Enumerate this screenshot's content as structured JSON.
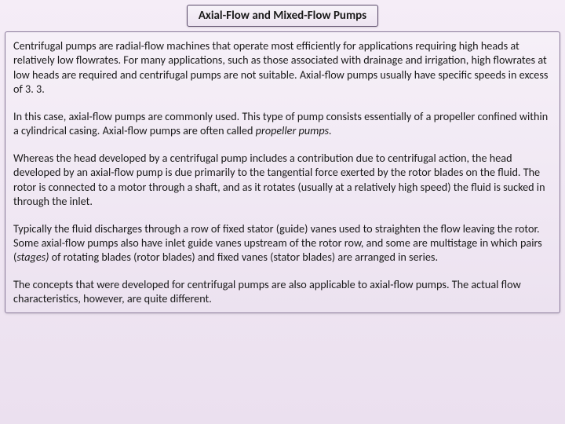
{
  "title": "Axial-Flow and Mixed-Flow Pumps",
  "paragraphs": {
    "p1": "Centrifugal pumps are radial-flow machines that operate most efficiently for applications requiring high heads at relatively low flowrates. For many applications, such as those associated with drainage and irrigation, high flowrates at low heads are required and centrifugal pumps are not suitable. Axial-flow pumps usually have specific speeds in excess of 3. 3.",
    "p2a": "In this case, axial-flow pumps are commonly used. This type of pump consists essentially of a propeller confined within a cylindrical casing. Axial-flow pumps are often called ",
    "p2b": "propeller pumps.",
    "p3": "Whereas the head developed by a centrifugal pump includes a contribution due to centrifugal action, the head developed by an axial-flow pump is due primarily to the tangential force exerted by the rotor blades on the fluid. The rotor is connected to a motor through a shaft, and as it rotates (usually at a relatively high speed) the fluid is sucked in through the inlet.",
    "p4a": "Typically the fluid discharges through a row of fixed stator (guide) vanes used to straighten the flow leaving the rotor.  Some axial-flow pumps also have inlet guide vanes upstream of the rotor row, and some are multistage in which pairs (",
    "p4b": "stages)",
    "p4c": " of rotating blades (rotor blades) and fixed vanes (stator blades) are arranged in series.",
    "p5": "The concepts that were developed for centrifugal pumps are also applicable to axial-flow pumps. The actual flow characteristics, however, are quite different."
  },
  "colors": {
    "bg_top": "#f5edf7",
    "bg_bottom": "#ebe0ef",
    "box_border": "#5a4a6a",
    "text": "#1a1a1a"
  },
  "typography": {
    "title_fontsize": 15,
    "title_weight": "bold",
    "body_fontsize": 14.2,
    "font_family": "Calibri"
  }
}
